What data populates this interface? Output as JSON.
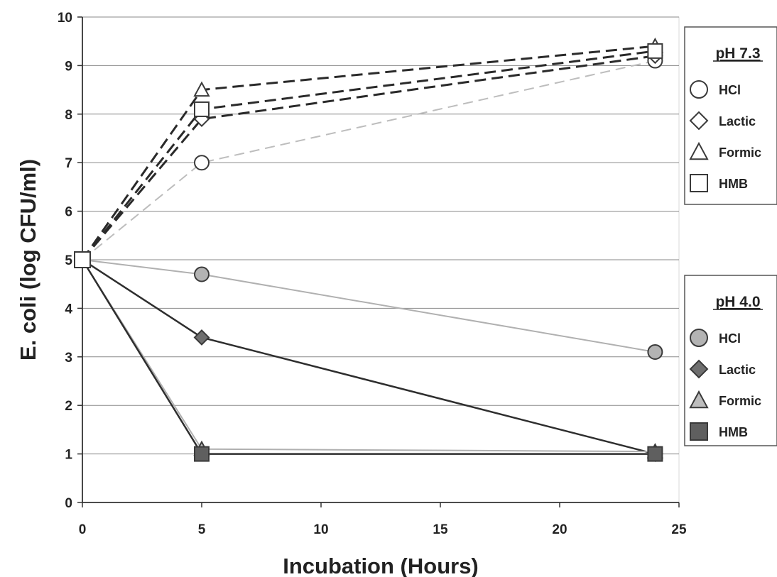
{
  "chart_data": {
    "type": "line",
    "xlabel": "Incubation (Hours)",
    "ylabel": "E. coli (log CFU/ml)",
    "xlim": [
      0,
      25
    ],
    "ylim": [
      0,
      10
    ],
    "xticks": [
      "0",
      "5",
      "10",
      "15",
      "20",
      "25"
    ],
    "yticks": [
      "0",
      "1",
      "2",
      "3",
      "4",
      "5",
      "6",
      "7",
      "8",
      "9",
      "10"
    ],
    "grid": "horizontal",
    "x": [
      0,
      5,
      24
    ],
    "series": [
      {
        "name": "HCl",
        "group": "pH 7.3",
        "marker": "circle",
        "style": "dashed-light",
        "values": [
          5.0,
          7.0,
          9.1
        ]
      },
      {
        "name": "Lactic",
        "group": "pH 7.3",
        "marker": "diamond",
        "style": "dashed",
        "values": [
          5.0,
          7.9,
          9.2
        ]
      },
      {
        "name": "Formic",
        "group": "pH 7.3",
        "marker": "triangle",
        "style": "dashed",
        "values": [
          5.0,
          8.5,
          9.4
        ]
      },
      {
        "name": "HMB",
        "group": "pH 7.3",
        "marker": "square",
        "style": "dashed",
        "values": [
          5.0,
          8.1,
          9.3
        ]
      },
      {
        "name": "HCl",
        "group": "pH 4.0",
        "marker": "circle",
        "style": "solid-light",
        "values": [
          5.0,
          4.7,
          3.1
        ]
      },
      {
        "name": "Lactic",
        "group": "pH 4.0",
        "marker": "diamond",
        "style": "solid",
        "values": [
          5.0,
          3.4,
          1.0
        ]
      },
      {
        "name": "Formic",
        "group": "pH 4.0",
        "marker": "triangle",
        "style": "solid-light",
        "values": [
          5.0,
          1.1,
          1.05
        ]
      },
      {
        "name": "HMB",
        "group": "pH 4.0",
        "marker": "square",
        "style": "solid",
        "values": [
          5.0,
          1.0,
          1.0
        ]
      }
    ],
    "legends": [
      {
        "title": "pH 7.3",
        "placement": "right-top",
        "filled": false,
        "items": [
          {
            "label": "HCl",
            "marker": "circle"
          },
          {
            "label": "Lactic",
            "marker": "diamond"
          },
          {
            "label": "Formic",
            "marker": "triangle"
          },
          {
            "label": "HMB",
            "marker": "square"
          }
        ]
      },
      {
        "title": "pH 4.0",
        "placement": "right-middle",
        "filled": true,
        "items": [
          {
            "label": "HCl",
            "marker": "circle"
          },
          {
            "label": "Lactic",
            "marker": "diamond"
          },
          {
            "label": "Formic",
            "marker": "triangle"
          },
          {
            "label": "HMB",
            "marker": "square"
          }
        ]
      }
    ]
  }
}
